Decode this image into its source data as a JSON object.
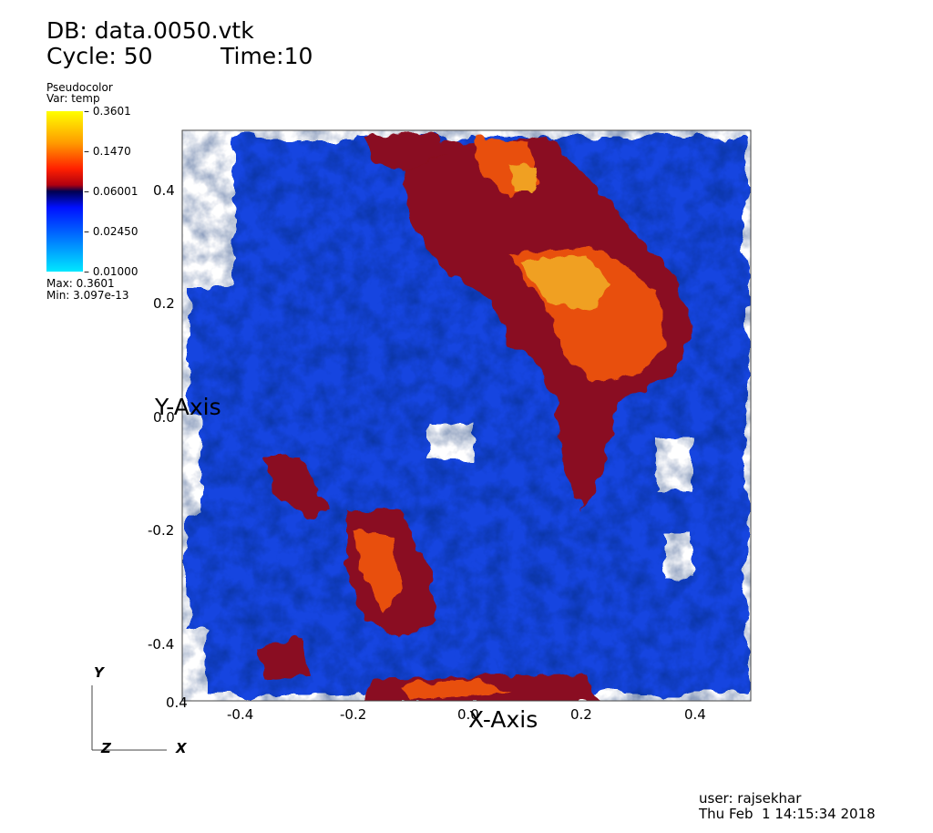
{
  "header": {
    "db_label": "DB: data.0050.vtk",
    "cycle_label": "Cycle: 50",
    "time_label": "Time:10"
  },
  "legend": {
    "plot_type": "Pseudocolor",
    "var_label": "Var: temp",
    "ticks": [
      "0.3601",
      "0.1470",
      "0.06001",
      "0.02450",
      "0.01000"
    ],
    "max_label": "Max:  0.3601",
    "min_label": "Min:  3.097e-13",
    "colors": [
      "#00e8ff",
      "#0018ff",
      "#000050",
      "#ff2000",
      "#ffff00"
    ]
  },
  "plot": {
    "x_axis_title": "X-Axis",
    "y_axis_title": "Y-Axis",
    "x_ticks": [
      "-0.4",
      "-0.2",
      "0.0",
      "0.2",
      "0.4"
    ],
    "y_ticks": [
      "0.4",
      "0.2",
      "0.0",
      "-0.2",
      "-0.4"
    ],
    "corner_label": "0.4",
    "field_colors": {
      "blue": "#1844e0",
      "dark_red": "#8a1020",
      "orange": "#e85010",
      "yellow": "#f0a020"
    }
  },
  "triad": {
    "x": "X",
    "y": "Y",
    "z": "Z"
  },
  "footer": {
    "user_label": "user: rajsekhar",
    "date_label": "Thu Feb  1 14:15:34 2018"
  }
}
